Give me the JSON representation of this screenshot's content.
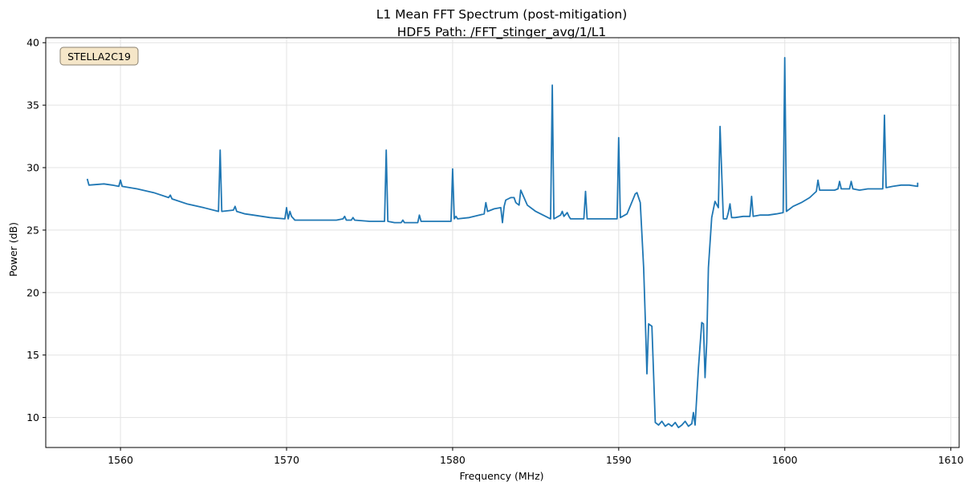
{
  "chart_data": {
    "type": "line",
    "title": "L1 Mean FFT Spectrum (post-mitigation)",
    "subtitle": "HDF5 Path: /FFT_stinger_avg/1/L1",
    "xlabel": "Frequency (MHz)",
    "ylabel": "Power (dB)",
    "xlim": [
      1555.5,
      1610.5
    ],
    "ylim": [
      7.6,
      40.4
    ],
    "xticks": [
      1560,
      1570,
      1580,
      1590,
      1600,
      1610
    ],
    "yticks": [
      10,
      15,
      20,
      25,
      30,
      35,
      40
    ],
    "xtick_labels": [
      "1560",
      "1570",
      "1580",
      "1590",
      "1600",
      "1610"
    ],
    "ytick_labels": [
      "10",
      "15",
      "20",
      "25",
      "30",
      "35",
      "40"
    ],
    "grid": true,
    "annotation": "STELLA2C19",
    "series": [
      {
        "color": "#1f77b4",
        "x": [
          1558.0,
          1558.1,
          1559.0,
          1559.5,
          1559.9,
          1560.0,
          1560.1,
          1561.0,
          1562.0,
          1562.9,
          1563.0,
          1563.1,
          1564.0,
          1565.0,
          1565.9,
          1566.0,
          1566.1,
          1566.8,
          1566.9,
          1567.0,
          1567.5,
          1568.0,
          1569.0,
          1569.9,
          1570.0,
          1570.1,
          1570.2,
          1570.3,
          1570.5,
          1571.0,
          1572.0,
          1573.0,
          1573.4,
          1573.5,
          1573.6,
          1573.9,
          1574.0,
          1574.1,
          1575.0,
          1575.9,
          1576.0,
          1576.1,
          1576.5,
          1576.9,
          1577.0,
          1577.1,
          1577.9,
          1578.0,
          1578.1,
          1579.0,
          1579.9,
          1580.0,
          1580.1,
          1580.2,
          1580.3,
          1581.0,
          1581.9,
          1582.0,
          1582.1,
          1582.5,
          1582.9,
          1583.0,
          1583.1,
          1583.2,
          1583.5,
          1583.7,
          1583.8,
          1584.0,
          1584.1,
          1584.5,
          1585.0,
          1585.9,
          1586.0,
          1586.1,
          1586.5,
          1586.6,
          1586.7,
          1586.9,
          1587.0,
          1587.1,
          1587.5,
          1587.9,
          1588.0,
          1588.1,
          1589.0,
          1589.9,
          1590.0,
          1590.1,
          1590.5,
          1591.0,
          1591.1,
          1591.3,
          1591.5,
          1591.6,
          1591.7,
          1591.8,
          1592.0,
          1592.2,
          1592.4,
          1592.6,
          1592.8,
          1593.0,
          1593.2,
          1593.4,
          1593.6,
          1593.8,
          1594.0,
          1594.2,
          1594.4,
          1594.5,
          1594.6,
          1594.8,
          1595.0,
          1595.1,
          1595.2,
          1595.3,
          1595.4,
          1595.6,
          1595.8,
          1596.0,
          1596.1,
          1596.3,
          1596.5,
          1596.6,
          1596.7,
          1596.8,
          1597.0,
          1597.5,
          1597.9,
          1598.0,
          1598.1,
          1598.5,
          1599.0,
          1599.5,
          1599.9,
          1600.0,
          1600.1,
          1600.5,
          1601.0,
          1601.5,
          1601.9,
          1602.0,
          1602.1,
          1603.0,
          1603.2,
          1603.3,
          1603.4,
          1603.9,
          1604.0,
          1604.1,
          1604.5,
          1605.0,
          1605.9,
          1606.0,
          1606.1,
          1606.5,
          1607.0,
          1607.5,
          1608.0,
          1608.0
        ],
        "y": [
          29.1,
          28.6,
          28.7,
          28.6,
          28.5,
          29.0,
          28.5,
          28.3,
          28.0,
          27.6,
          27.8,
          27.5,
          27.1,
          26.8,
          26.5,
          31.4,
          26.5,
          26.6,
          26.9,
          26.5,
          26.3,
          26.2,
          26.0,
          25.9,
          26.8,
          25.9,
          26.5,
          26.1,
          25.8,
          25.8,
          25.8,
          25.8,
          25.9,
          26.1,
          25.8,
          25.8,
          26.0,
          25.8,
          25.7,
          25.7,
          31.4,
          25.7,
          25.6,
          25.6,
          25.8,
          25.6,
          25.6,
          26.2,
          25.7,
          25.7,
          25.7,
          29.9,
          25.9,
          26.1,
          25.9,
          26.0,
          26.3,
          27.2,
          26.5,
          26.7,
          26.8,
          25.6,
          26.9,
          27.4,
          27.6,
          27.6,
          27.2,
          27.0,
          28.2,
          27.0,
          26.5,
          25.9,
          36.6,
          25.9,
          26.2,
          26.5,
          26.1,
          26.4,
          26.1,
          25.9,
          25.9,
          25.9,
          28.1,
          25.9,
          25.9,
          25.9,
          32.4,
          26.0,
          26.3,
          27.9,
          28.0,
          27.2,
          22.0,
          18.0,
          13.5,
          17.5,
          17.3,
          9.6,
          9.4,
          9.7,
          9.3,
          9.5,
          9.3,
          9.6,
          9.2,
          9.4,
          9.7,
          9.3,
          9.5,
          10.4,
          9.4,
          14.0,
          17.6,
          17.5,
          13.2,
          16.0,
          22.0,
          26.0,
          27.3,
          26.8,
          33.3,
          25.9,
          25.9,
          26.4,
          27.1,
          26.0,
          26.0,
          26.1,
          26.1,
          27.7,
          26.1,
          26.2,
          26.2,
          26.3,
          26.4,
          38.8,
          26.5,
          26.9,
          27.2,
          27.6,
          28.1,
          29.0,
          28.2,
          28.2,
          28.3,
          28.9,
          28.3,
          28.3,
          28.9,
          28.3,
          28.2,
          28.3,
          28.3,
          34.2,
          28.4,
          28.5,
          28.6,
          28.6,
          28.5,
          28.8
        ]
      }
    ]
  }
}
